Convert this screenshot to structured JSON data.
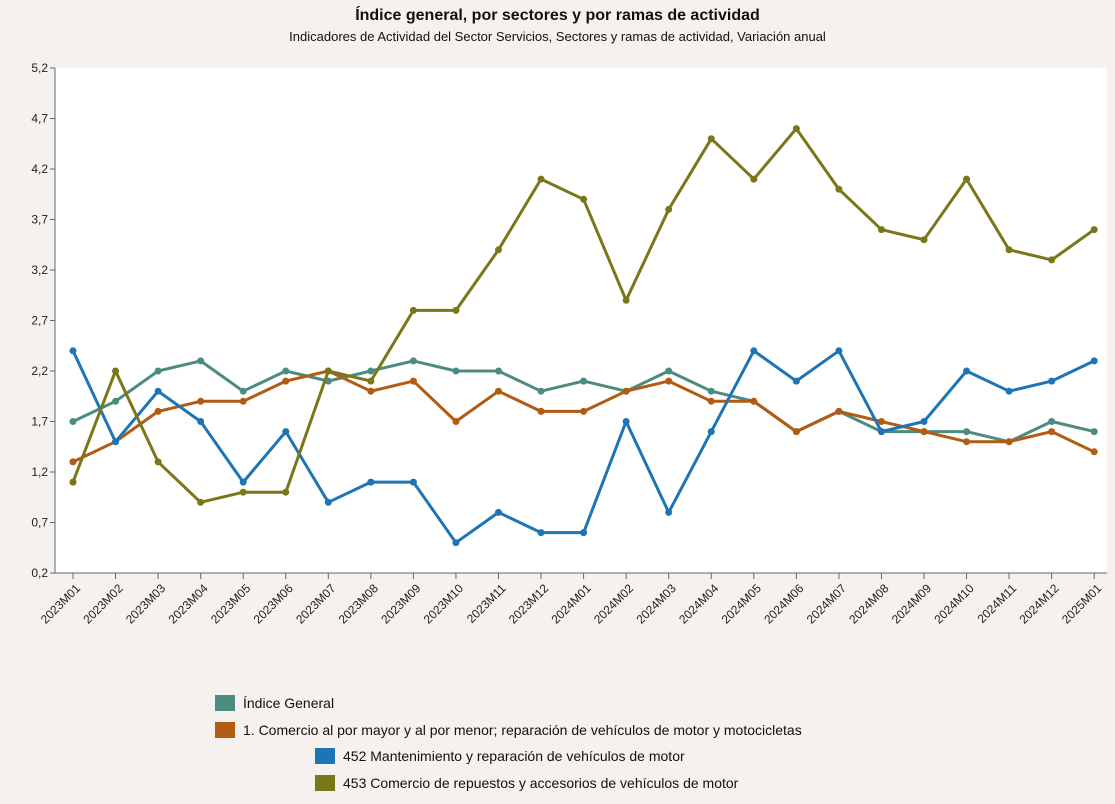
{
  "chart_data": {
    "type": "line",
    "title": "Índice general, por sectores y por ramas de actividad",
    "subtitle": "Indicadores de Actividad del Sector Servicios, Sectores y ramas de actividad, Variación anual",
    "xlabel": "",
    "ylabel": "",
    "categories": [
      "2023M01",
      "2023M02",
      "2023M03",
      "2023M04",
      "2023M05",
      "2023M06",
      "2023M07",
      "2023M08",
      "2023M09",
      "2023M10",
      "2023M11",
      "2023M12",
      "2024M01",
      "2024M02",
      "2024M03",
      "2024M04",
      "2024M05",
      "2024M06",
      "2024M07",
      "2024M08",
      "2024M09",
      "2024M10",
      "2024M11",
      "2024M12",
      "2025M01"
    ],
    "ylim": [
      0.2,
      5.2
    ],
    "yticks": [
      "0,2",
      "0,7",
      "1,2",
      "1,7",
      "2,2",
      "2,7",
      "3,2",
      "3,7",
      "4,2",
      "4,7",
      "5,2"
    ],
    "grid": false,
    "legend_position": "bottom",
    "series": [
      {
        "name": "Índice General",
        "color": "#4c8c80",
        "values": [
          1.7,
          1.9,
          2.2,
          2.3,
          2.0,
          2.2,
          2.1,
          2.2,
          2.3,
          2.2,
          2.2,
          2.0,
          2.1,
          2.0,
          2.2,
          2.0,
          1.9,
          1.6,
          1.8,
          1.6,
          1.6,
          1.6,
          1.5,
          1.7,
          1.6
        ]
      },
      {
        "name": "1. Comercio al por mayor y al por menor; reparación de vehículos de motor y motocicletas",
        "color": "#b15b13",
        "values": [
          1.3,
          1.5,
          1.8,
          1.9,
          1.9,
          2.1,
          2.2,
          2.0,
          2.1,
          1.7,
          2.0,
          1.8,
          1.8,
          2.0,
          2.1,
          1.9,
          1.9,
          1.6,
          1.8,
          1.7,
          1.6,
          1.5,
          1.5,
          1.6,
          1.4
        ]
      },
      {
        "name": "452 Mantenimiento y reparación de vehículos de motor",
        "color": "#1e75b5",
        "values": [
          2.4,
          1.5,
          2.0,
          1.7,
          1.1,
          1.6,
          0.9,
          1.1,
          1.1,
          0.5,
          0.8,
          0.6,
          0.6,
          1.7,
          0.8,
          1.6,
          2.4,
          2.1,
          2.4,
          1.6,
          1.7,
          2.2,
          2.0,
          2.1,
          2.3
        ]
      },
      {
        "name": "453 Comercio de repuestos y accesorios de vehículos de motor",
        "color": "#7a771a",
        "values": [
          1.1,
          2.2,
          1.3,
          0.9,
          1.0,
          1.0,
          2.2,
          2.1,
          2.8,
          2.8,
          3.4,
          4.1,
          3.9,
          2.9,
          3.8,
          4.5,
          4.1,
          4.6,
          4.0,
          3.6,
          3.5,
          4.1,
          3.4,
          3.3,
          3.6
        ]
      }
    ]
  }
}
